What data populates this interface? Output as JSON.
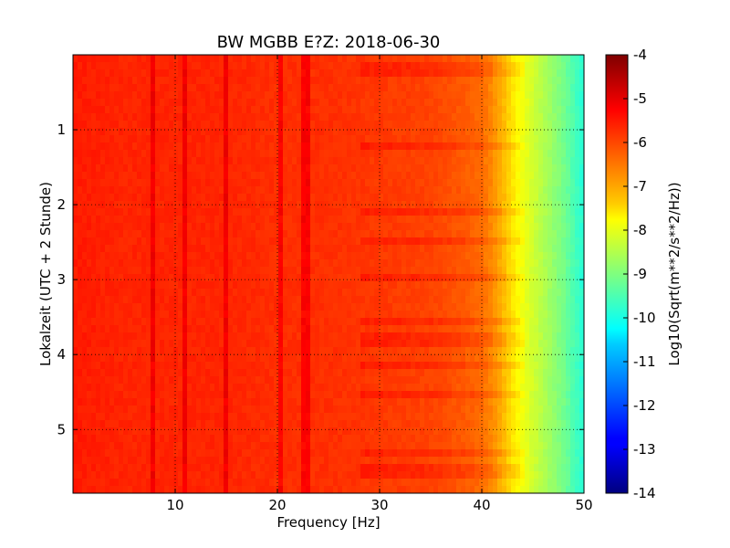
{
  "chart_data": {
    "type": "heatmap",
    "title": "BW MGBB E?Z: 2018-06-30",
    "xlabel": "Frequency [Hz]",
    "ylabel": "Lokalzeit (UTC + 2 Stunde)",
    "xlim": [
      0,
      50
    ],
    "ylim": [
      5.85,
      0
    ],
    "x_ticks": [
      10,
      20,
      30,
      40,
      50
    ],
    "y_ticks": [
      1,
      2,
      3,
      4,
      5
    ],
    "grid": true,
    "colormap": "jet",
    "colorbar": {
      "label": "Log10(Sqrt(m**2/s**2/Hz))",
      "range": [
        -14,
        -4
      ],
      "ticks": [
        -4,
        -5,
        -6,
        -7,
        -8,
        -9,
        -10,
        -11,
        -12,
        -13,
        -14
      ]
    },
    "spectrum_profile": {
      "description_values_log10": true,
      "frequency_hz": [
        0,
        5,
        10,
        15,
        20,
        25,
        30,
        35,
        38,
        40,
        41,
        42,
        43,
        44,
        45,
        46,
        47,
        48,
        49,
        50
      ],
      "level": [
        -5.5,
        -5.6,
        -5.6,
        -5.6,
        -5.7,
        -5.7,
        -5.8,
        -5.9,
        -6.1,
        -6.3,
        -6.6,
        -7.0,
        -7.5,
        -7.9,
        -8.2,
        -8.5,
        -8.8,
        -9.1,
        -9.5,
        -9.9
      ]
    },
    "spectral_lines_hz": [
      7.8,
      11,
      15,
      20.3,
      22.7
    ],
    "time_bands_hours": [
      0.2,
      1.2,
      2.1,
      2.5,
      3.0,
      3.55,
      3.8,
      4.15,
      4.5,
      5.3,
      5.55
    ]
  }
}
